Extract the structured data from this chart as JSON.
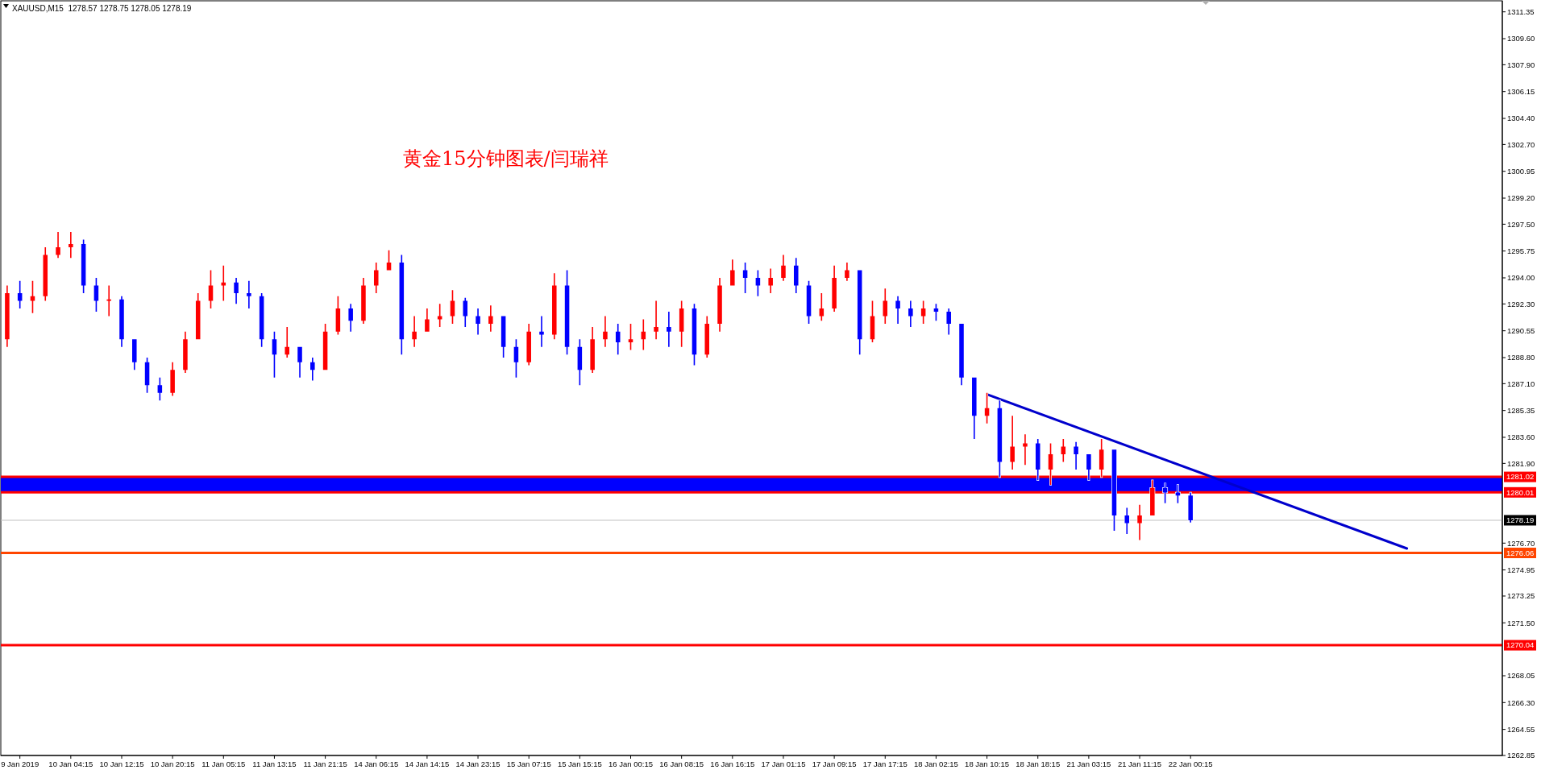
{
  "chart_data": {
    "type": "candlestick",
    "title": "XAUUSD,M15  1278.57 1278.75 1278.05 1278.19",
    "annotations": [
      "黄金15分钟图表/闫瑞祥"
    ],
    "categories": [
      null,
      "9 Jan 2019",
      null,
      null,
      null,
      "10 Jan 04:15",
      null,
      null,
      null,
      "10 Jan 12:15",
      null,
      null,
      null,
      "10 Jan 20:15",
      null,
      null,
      null,
      "11 Jan 05:15",
      null,
      null,
      null,
      "11 Jan 13:15",
      null,
      null,
      null,
      "11 Jan 21:15",
      null,
      null,
      null,
      "14 Jan 06:15",
      null,
      null,
      null,
      "14 Jan 14:15",
      null,
      null,
      null,
      "14 Jan 23:15",
      null,
      null,
      null,
      "15 Jan 07:15",
      null,
      null,
      null,
      "15 Jan 15:15",
      null,
      null,
      null,
      "16 Jan 00:15",
      null,
      null,
      null,
      "16 Jan 08:15",
      null,
      null,
      null,
      "16 Jan 16:15",
      null,
      null,
      null,
      "17 Jan 01:15",
      null,
      null,
      null,
      "17 Jan 09:15",
      null,
      null,
      null,
      "17 Jan 17:15",
      null,
      null,
      null,
      "18 Jan 02:15",
      null,
      null,
      null,
      "18 Jan 10:15",
      null,
      null,
      null,
      "18 Jan 18:15",
      null,
      null,
      null,
      "21 Jan 03:15",
      null,
      null,
      null,
      "21 Jan 11:15",
      null,
      null,
      null,
      "22 Jan 00:15",
      null,
      null,
      null,
      null,
      null,
      null,
      null,
      null,
      null,
      null,
      null,
      null,
      null,
      null,
      null,
      null,
      null,
      null,
      null,
      null,
      null,
      null,
      null,
      null
    ],
    "ohlc": [
      [
        1290,
        1293.5,
        1289.5,
        1293
      ],
      [
        1293,
        1293.8,
        1292,
        1292.5
      ],
      [
        1292.5,
        1293.8,
        1291.7,
        1292.8
      ],
      [
        1292.8,
        1296,
        1292.5,
        1295.5
      ],
      [
        1295.5,
        1297,
        1295.3,
        1296
      ],
      [
        1296,
        1297,
        1295.3,
        1296.2
      ],
      [
        1296.2,
        1296.5,
        1293,
        1293.5
      ],
      [
        1293.5,
        1294,
        1291.8,
        1292.5
      ],
      [
        1292.5,
        1293.5,
        1291.5,
        1292.6
      ],
      [
        1292.6,
        1292.8,
        1289.5,
        1290
      ],
      [
        1290,
        1290,
        1288,
        1288.5
      ],
      [
        1288.5,
        1288.8,
        1286.5,
        1287
      ],
      [
        1287,
        1287.5,
        1286,
        1286.5
      ],
      [
        1286.5,
        1288.5,
        1286.3,
        1288
      ],
      [
        1288,
        1290.5,
        1287.8,
        1290
      ],
      [
        1290,
        1293,
        1290,
        1292.5
      ],
      [
        1292.5,
        1294.5,
        1292,
        1293.5
      ],
      [
        1293.5,
        1294.8,
        1292.5,
        1293.7
      ],
      [
        1293.7,
        1294,
        1292.3,
        1293
      ],
      [
        1293,
        1293.8,
        1292,
        1292.8
      ],
      [
        1292.8,
        1293,
        1289.5,
        1290
      ],
      [
        1290,
        1290.5,
        1287.5,
        1289
      ],
      [
        1289,
        1290.8,
        1288.8,
        1289.5
      ],
      [
        1289.5,
        1289.5,
        1287.5,
        1288.5
      ],
      [
        1288.5,
        1288.8,
        1287.3,
        1288
      ],
      [
        1288,
        1291,
        1288,
        1290.5
      ],
      [
        1290.5,
        1292.8,
        1290.3,
        1292
      ],
      [
        1292,
        1292.3,
        1290.5,
        1291.2
      ],
      [
        1291.2,
        1294,
        1291,
        1293.5
      ],
      [
        1293.5,
        1295,
        1293,
        1294.5
      ],
      [
        1294.5,
        1295.8,
        1294.5,
        1295
      ],
      [
        1295,
        1295.5,
        1289,
        1290
      ],
      [
        1290,
        1291.5,
        1289.5,
        1290.5
      ],
      [
        1290.5,
        1292,
        1290.5,
        1291.3
      ],
      [
        1291.3,
        1292.3,
        1290.8,
        1291.5
      ],
      [
        1291.5,
        1293.2,
        1291,
        1292.5
      ],
      [
        1292.5,
        1292.7,
        1290.8,
        1291.5
      ],
      [
        1291.5,
        1292,
        1290.3,
        1291
      ],
      [
        1291,
        1292.2,
        1290.5,
        1291.5
      ],
      [
        1291.5,
        1291.5,
        1288.8,
        1289.5
      ],
      [
        1289.5,
        1290,
        1287.5,
        1288.5
      ],
      [
        1288.5,
        1291,
        1288.3,
        1290.5
      ],
      [
        1290.5,
        1291.5,
        1289.5,
        1290.3
      ],
      [
        1290.3,
        1294.3,
        1290,
        1293.5
      ],
      [
        1293.5,
        1294.5,
        1289,
        1289.5
      ],
      [
        1289.5,
        1290,
        1287,
        1288
      ],
      [
        1288,
        1290.8,
        1287.8,
        1290
      ],
      [
        1290,
        1291.5,
        1289.5,
        1290.5
      ],
      [
        1290.5,
        1291,
        1289,
        1289.8
      ],
      [
        1289.8,
        1291,
        1289.3,
        1290
      ],
      [
        1290,
        1291.3,
        1289.3,
        1290.5
      ],
      [
        1290.5,
        1292.5,
        1290,
        1290.8
      ],
      [
        1290.8,
        1291.8,
        1289.5,
        1290.5
      ],
      [
        1290.5,
        1292.5,
        1289.5,
        1292
      ],
      [
        1292,
        1292.3,
        1288.3,
        1289
      ],
      [
        1289,
        1291.5,
        1288.8,
        1291
      ],
      [
        1291,
        1294,
        1290.5,
        1293.5
      ],
      [
        1293.5,
        1295.2,
        1293.5,
        1294.5
      ],
      [
        1294.5,
        1295,
        1293,
        1294
      ],
      [
        1294,
        1294.5,
        1292.8,
        1293.5
      ],
      [
        1293.5,
        1294.6,
        1293,
        1294
      ],
      [
        1294,
        1295.5,
        1293.8,
        1294.8
      ],
      [
        1294.8,
        1295.3,
        1293,
        1293.5
      ],
      [
        1293.5,
        1293.8,
        1291,
        1291.5
      ],
      [
        1291.5,
        1293,
        1291.2,
        1292
      ],
      [
        1292,
        1294.8,
        1291.8,
        1294
      ],
      [
        1294,
        1295,
        1293.8,
        1294.5
      ],
      [
        1294.5,
        1294.5,
        1289,
        1290
      ],
      [
        1290,
        1292.5,
        1289.8,
        1291.5
      ],
      [
        1291.5,
        1293.3,
        1291,
        1292.5
      ],
      [
        1292.5,
        1292.8,
        1291,
        1292
      ],
      [
        1292,
        1292.5,
        1290.8,
        1291.5
      ],
      [
        1291.5,
        1292.5,
        1291,
        1292
      ],
      [
        1292,
        1292.3,
        1291.2,
        1291.8
      ],
      [
        1291.8,
        1292,
        1290.3,
        1291
      ],
      [
        1291,
        1291,
        1287,
        1287.5
      ],
      [
        1287.5,
        1287.5,
        1283.5,
        1285
      ],
      [
        1285,
        1286.5,
        1284.5,
        1285.5
      ],
      [
        1285.5,
        1286,
        1281,
        1282
      ],
      [
        1282,
        1285,
        1281.5,
        1283
      ],
      [
        1283,
        1283.8,
        1281.8,
        1283.2
      ],
      [
        1283.2,
        1283.5,
        1280.8,
        1281.5
      ],
      [
        1281.5,
        1283.2,
        1280.5,
        1282.5
      ],
      [
        1282.5,
        1283.5,
        1282,
        1283
      ],
      [
        1283,
        1283.3,
        1281.5,
        1282.5
      ],
      [
        1282.5,
        1282.5,
        1280.8,
        1281.5
      ],
      [
        1281.5,
        1283.5,
        1281,
        1282.8
      ],
      [
        1282.8,
        1282.8,
        1277.5,
        1278.5
      ],
      [
        1278.5,
        1279,
        1277.3,
        1278
      ],
      [
        1278,
        1279.2,
        1276.9,
        1278.5
      ],
      [
        1278.5,
        1280.8,
        1278.5,
        1280.3
      ],
      [
        1280.3,
        1280.6,
        1279.3,
        1280
      ],
      [
        1280,
        1280.5,
        1279.3,
        1279.8
      ],
      [
        1279.8,
        1280,
        1278.05,
        1278.19
      ],
      null,
      null,
      null,
      null,
      null,
      null,
      null,
      null,
      null,
      null,
      null,
      null,
      null,
      null,
      null,
      null,
      null,
      null,
      null,
      null,
      null,
      null,
      null,
      null
    ],
    "colors": [
      "#ff0000",
      "#0000ff",
      "#ff0000",
      "#ff0000",
      "#ff0000",
      "#ff0000",
      "#0000ff",
      "#0000ff",
      "#ff0000",
      "#0000ff",
      "#0000ff",
      "#0000ff",
      "#0000ff",
      "#ff0000",
      "#ff0000",
      "#ff0000",
      "#ff0000",
      "#ff0000",
      "#0000ff",
      "#0000ff",
      "#0000ff",
      "#0000ff",
      "#ff0000",
      "#0000ff",
      "#0000ff",
      "#ff0000",
      "#ff0000",
      "#0000ff",
      "#ff0000",
      "#ff0000",
      "#ff0000",
      "#0000ff",
      "#ff0000",
      "#ff0000",
      "#ff0000",
      "#ff0000",
      "#0000ff",
      "#0000ff",
      "#ff0000",
      "#0000ff",
      "#0000ff",
      "#ff0000",
      "#0000ff",
      "#ff0000",
      "#0000ff",
      "#0000ff",
      "#ff0000",
      "#ff0000",
      "#0000ff",
      "#ff0000",
      "#ff0000",
      "#ff0000",
      "#0000ff",
      "#ff0000",
      "#0000ff",
      "#ff0000",
      "#ff0000",
      "#ff0000",
      "#0000ff",
      "#0000ff",
      "#ff0000",
      "#ff0000",
      "#0000ff",
      "#0000ff",
      "#ff0000",
      "#ff0000",
      "#ff0000",
      "#0000ff",
      "#ff0000",
      "#ff0000",
      "#0000ff",
      "#0000ff",
      "#ff0000",
      "#0000ff",
      "#0000ff",
      "#0000ff",
      "#0000ff",
      "#ff0000",
      "#0000ff",
      "#ff0000",
      "#ff0000",
      "#0000ff",
      "#ff0000",
      "#ff0000",
      "#0000ff",
      "#0000ff",
      "#ff0000",
      "#0000ff",
      "#0000ff",
      "#ff0000",
      "#ff0000",
      "#0000ff",
      "#0000ff",
      "#0000ff",
      null,
      null,
      null,
      null,
      null,
      null,
      null,
      null,
      null,
      null,
      null,
      null,
      null,
      null,
      null,
      null,
      null,
      null,
      null,
      null,
      null,
      null,
      null,
      null
    ],
    "series": [
      {
        "type": "line",
        "color": "#0000cc",
        "values": [
          null,
          null,
          null,
          null,
          null,
          null,
          null,
          null,
          null,
          null,
          null,
          null,
          null,
          null,
          null,
          null,
          null,
          null,
          null,
          null,
          null,
          null,
          null,
          null,
          null,
          null,
          null,
          null,
          null,
          null,
          null,
          null,
          null,
          null,
          null,
          null,
          null,
          null,
          null,
          null,
          null,
          null,
          null,
          null,
          null,
          null,
          null,
          null,
          null,
          null,
          null,
          null,
          null,
          null,
          null,
          null,
          null,
          null,
          null,
          null,
          null,
          null,
          null,
          null,
          null,
          null,
          null,
          null,
          null,
          null,
          null,
          null,
          null,
          null,
          null,
          null,
          null,
          1286.4,
          null,
          null,
          null,
          null,
          null,
          null,
          null,
          null,
          null,
          null,
          null,
          null,
          null,
          null,
          null,
          null,
          null,
          null,
          null,
          null,
          null,
          null,
          null,
          null,
          null,
          null,
          null,
          null,
          null,
          null,
          null,
          null,
          1276.35,
          null,
          null,
          null,
          null,
          null,
          null,
          null
        ]
      }
    ],
    "ylim": [
      1262.85,
      1312.07
    ],
    "yticks": [
      1311.35,
      {
        "value": 1309.6,
        "label": "1309.60"
      },
      {
        "value": 1307.9,
        "label": "1307.90"
      },
      1306.15,
      {
        "value": 1304.4,
        "label": "1304.40"
      },
      {
        "value": 1302.7,
        "label": "1302.70"
      },
      1300.95,
      {
        "value": 1299.2,
        "label": "1299.20"
      },
      {
        "value": 1297.5,
        "label": "1297.50"
      },
      1295.75,
      {
        "value": 1294,
        "label": "1294.00"
      },
      {
        "value": 1292.3,
        "label": "1292.30"
      },
      1290.55,
      {
        "value": 1288.8,
        "label": "1288.80"
      },
      {
        "value": 1287.1,
        "label": "1287.10"
      },
      1285.35,
      {
        "value": 1283.6,
        "label": "1283.60"
      },
      {
        "value": 1281.9,
        "label": "1281.90"
      },
      {
        "value": 1276.7,
        "label": "1276.70"
      },
      1274.95,
      1273.25,
      {
        "value": 1271.5,
        "label": "1271.50"
      },
      1268.05,
      {
        "value": 1266.3,
        "label": "1266.30"
      },
      1264.55,
      1262.85
    ],
    "bands": [
      {
        "axis": "y",
        "from": 1280.01,
        "to": 1281.02,
        "color": "#0000ff"
      }
    ],
    "ref_lines": [
      {
        "axis": "y",
        "value": 1281.02,
        "label": "1281.02",
        "color": "#ff0000"
      },
      {
        "axis": "y",
        "value": 1280.01,
        "label": "1280.01",
        "color": "#ff0000"
      },
      {
        "axis": "y",
        "value": 1278.19,
        "label": "1278.19",
        "color": "#c0c0c0"
      },
      {
        "axis": "y",
        "value": 1276.06,
        "label": "1276.06",
        "color": "#ff4500"
      },
      {
        "axis": "y",
        "value": 1270.04,
        "label": "1270.04",
        "color": "#ff0000"
      }
    ]
  }
}
